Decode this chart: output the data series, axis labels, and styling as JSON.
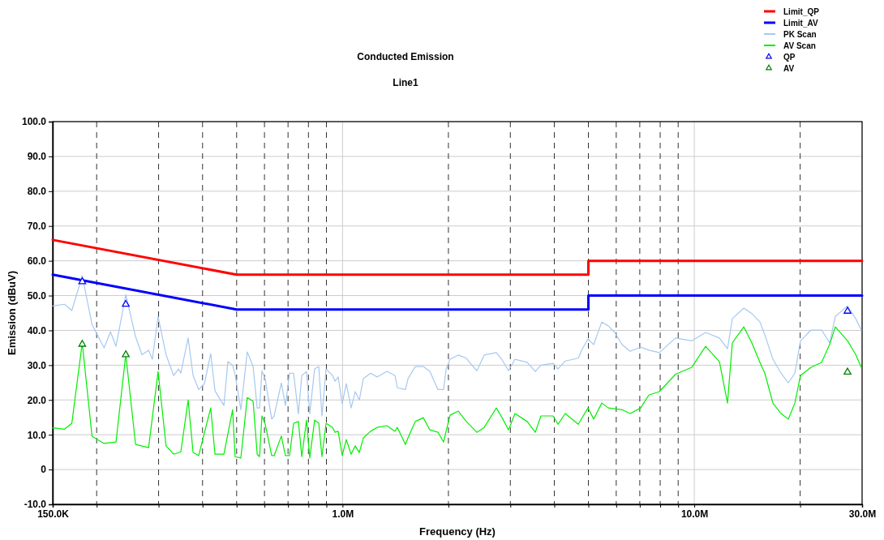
{
  "chart_data": {
    "type": "line",
    "title": "Conducted Emission",
    "subtitle": "Line1",
    "xlabel": "Frequency (Hz)",
    "ylabel": "Emission (dBuV)",
    "log": "x",
    "grid": true,
    "legend": "top right",
    "xlim": [
      150000,
      30000000
    ],
    "xticks": [
      {
        "value": 150000,
        "label": "150.0K"
      },
      {
        "value": 200000,
        "label": null
      },
      {
        "value": 300000,
        "label": null
      },
      {
        "value": 400000,
        "label": null
      },
      {
        "value": 500000,
        "label": null
      },
      {
        "value": 600000,
        "label": null
      },
      {
        "value": 700000,
        "label": null
      },
      {
        "value": 800000,
        "label": null
      },
      {
        "value": 900000,
        "label": null
      },
      {
        "value": 1000000,
        "label": "1.0M"
      },
      {
        "value": 2000000,
        "label": null
      },
      {
        "value": 3000000,
        "label": null
      },
      {
        "value": 4000000,
        "label": null
      },
      {
        "value": 5000000,
        "label": null
      },
      {
        "value": 6000000,
        "label": null
      },
      {
        "value": 7000000,
        "label": null
      },
      {
        "value": 8000000,
        "label": null
      },
      {
        "value": 9000000,
        "label": null
      },
      {
        "value": 10000000,
        "label": "10.0M"
      },
      {
        "value": 20000000,
        "label": null
      },
      {
        "value": 30000000,
        "label": "30.0M"
      }
    ],
    "ylim": [
      -10,
      100
    ],
    "yticks": [
      {
        "value": -10,
        "label": "-10.0"
      },
      {
        "value": 0,
        "label": "0"
      },
      {
        "value": 10,
        "label": "10.0"
      },
      {
        "value": 20,
        "label": "20.0"
      },
      {
        "value": 30,
        "label": "30.0"
      },
      {
        "value": 40,
        "label": "40.0"
      },
      {
        "value": 50,
        "label": "50.0"
      },
      {
        "value": 60,
        "label": "60.0"
      },
      {
        "value": 70,
        "label": "70.0"
      },
      {
        "value": 80,
        "label": "80.0"
      },
      {
        "value": 90,
        "label": "90.0"
      },
      {
        "value": 100,
        "label": "100.0"
      }
    ],
    "series": [
      {
        "name": "Limit_QP",
        "color": "#ff0000",
        "x": [
          150000,
          500000,
          5000000,
          5000000,
          30000000
        ],
        "values": [
          66,
          56,
          56,
          60,
          60
        ]
      },
      {
        "name": "Limit_AV",
        "color": "#0000ff",
        "x": [
          150000,
          500000,
          5000000,
          5000000,
          30000000
        ],
        "values": [
          56,
          46,
          46,
          50,
          50
        ]
      },
      {
        "name": "PK Scan",
        "color": "#a6c8f0",
        "x": [
          150000,
          162000,
          170000,
          182000,
          194000,
          210000,
          219000,
          227000,
          242000,
          258000,
          269000,
          281000,
          288000,
          299000,
          315000,
          331000,
          342000,
          347000,
          364000,
          376000,
          390000,
          405000,
          422000,
          434000,
          460000,
          472000,
          487000,
          495000,
          514000,
          536000,
          557000,
          572000,
          581000,
          590000,
          603000,
          629000,
          639000,
          670000,
          688000,
          707000,
          726000,
          749000,
          766000,
          790000,
          807000,
          833000,
          856000,
          874000,
          898000,
          937000,
          952000,
          972000,
          998000,
          1025000,
          1058000,
          1087000,
          1116000,
          1146000,
          1202000,
          1254000,
          1337000,
          1410000,
          1432000,
          1510000,
          1535000,
          1610000,
          1697000,
          1771000,
          1868000,
          1938000,
          1970000,
          2022000,
          2133000,
          2249000,
          2309000,
          2410000,
          2528000,
          2737000,
          2856000,
          2964000,
          3093000,
          3349000,
          3532000,
          3665000,
          3969000,
          4097000,
          4298000,
          4679000,
          4805000,
          4987000,
          5176000,
          5458000,
          5695000,
          5942000,
          6233000,
          6572000,
          7042000,
          7426000,
          7957000,
          8850000,
          9840000,
          10770000,
          11790000,
          12430000,
          12830000,
          13830000,
          14580000,
          15370000,
          15870000,
          16730000,
          17640000,
          18510000,
          19320000,
          20040000,
          21470000,
          23010000,
          24270000,
          25170000,
          27270000,
          28750000,
          29850000
        ],
        "values": [
          47,
          47.5,
          45.7,
          55.7,
          41.7,
          35,
          39.6,
          35.4,
          50.3,
          38.2,
          33,
          34.3,
          31.7,
          44,
          33,
          27,
          28.9,
          27.7,
          37.8,
          27,
          23,
          24.7,
          33.3,
          22.6,
          18.4,
          31,
          30,
          27.3,
          17.2,
          33.8,
          29.6,
          17.7,
          17.7,
          28.4,
          25.9,
          14.5,
          15.4,
          24.9,
          18.4,
          27.7,
          27.7,
          16,
          27,
          28.2,
          16,
          28.9,
          29.6,
          15.4,
          28.9,
          27,
          25.4,
          26.6,
          18.9,
          24.7,
          17.7,
          22.4,
          20,
          26.1,
          27.7,
          26.6,
          28.2,
          27,
          23.5,
          23,
          26.1,
          29.6,
          29.6,
          28.2,
          23,
          23,
          28.9,
          31.7,
          32.9,
          32,
          30.5,
          28.4,
          32.9,
          33.6,
          31.2,
          28.4,
          31.7,
          30.8,
          28.2,
          30,
          30.5,
          28.9,
          31.2,
          32,
          34.7,
          37.5,
          35.9,
          42.4,
          41.3,
          39.4,
          35.9,
          34,
          35.2,
          34.3,
          33.6,
          37.8,
          37,
          39.4,
          37.8,
          34.7,
          43.4,
          46.4,
          44.8,
          42.4,
          38.7,
          31.7,
          27.7,
          24.9,
          27.7,
          37,
          40.1,
          40.1,
          36.4,
          44,
          47,
          43.4,
          40.1
        ]
      },
      {
        "name": "AV Scan",
        "color": "#00ee00",
        "x": [
          150000,
          162000,
          170000,
          182000,
          194000,
          210000,
          227000,
          242000,
          258000,
          281000,
          299000,
          315000,
          331000,
          347000,
          364000,
          376000,
          390000,
          422000,
          434000,
          460000,
          487000,
          495000,
          514000,
          536000,
          557000,
          572000,
          581000,
          590000,
          603000,
          629000,
          639000,
          670000,
          688000,
          707000,
          726000,
          749000,
          766000,
          790000,
          807000,
          833000,
          856000,
          874000,
          898000,
          937000,
          952000,
          972000,
          998000,
          1025000,
          1058000,
          1087000,
          1116000,
          1146000,
          1202000,
          1254000,
          1337000,
          1410000,
          1432000,
          1510000,
          1535000,
          1610000,
          1697000,
          1771000,
          1868000,
          1938000,
          1970000,
          2022000,
          2133000,
          2249000,
          2410000,
          2528000,
          2737000,
          2856000,
          2964000,
          3093000,
          3349000,
          3532000,
          3665000,
          3969000,
          4097000,
          4298000,
          4679000,
          4987000,
          5176000,
          5458000,
          5695000,
          6233000,
          6572000,
          7042000,
          7426000,
          7957000,
          8850000,
          9840000,
          10770000,
          11790000,
          12430000,
          12830000,
          13830000,
          14580000,
          15370000,
          15870000,
          16730000,
          17640000,
          18510000,
          19320000,
          20040000,
          21470000,
          23010000,
          24270000,
          25170000,
          27270000,
          28750000,
          29850000
        ],
        "values": [
          12,
          11.6,
          13.3,
          36.4,
          9.6,
          7.5,
          7.9,
          33.1,
          7.2,
          6.3,
          28.2,
          6.8,
          4.4,
          5.1,
          20,
          4.9,
          4,
          17.7,
          4.4,
          4.4,
          17.2,
          3.7,
          3.3,
          20.7,
          19.6,
          4.4,
          3.7,
          15.4,
          13,
          4,
          4,
          9.6,
          4,
          4,
          13.3,
          13.8,
          3.7,
          14.2,
          3.3,
          14.2,
          13.3,
          3.7,
          13.3,
          12.1,
          10.7,
          11,
          4,
          8.6,
          4.4,
          6.8,
          4.9,
          9.1,
          11,
          12.1,
          12.6,
          11,
          12.1,
          7.2,
          9.1,
          13.8,
          14.9,
          11.4,
          10.7,
          7.9,
          11,
          15.6,
          16.8,
          13.8,
          10.7,
          12.1,
          17.7,
          14.5,
          11.4,
          16.1,
          13.8,
          10.7,
          15.4,
          15.4,
          13,
          16.1,
          13,
          17.7,
          14.5,
          19.1,
          17.7,
          17.2,
          16.1,
          17.7,
          21.4,
          22.4,
          27.4,
          29.4,
          35.4,
          31,
          19.1,
          36.4,
          41,
          36.4,
          30.8,
          27.7,
          19.1,
          16.1,
          14.5,
          19.1,
          27,
          29.4,
          30.8,
          36,
          41,
          37,
          33.1,
          29.4
        ]
      },
      {
        "name": "QP",
        "type": "scatter",
        "marker": "triangle",
        "color": "#0000ff",
        "x": [
          182000,
          242000,
          27270000
        ],
        "values": [
          54,
          47.5,
          45.5
        ]
      },
      {
        "name": "AV",
        "type": "scatter",
        "marker": "triangle",
        "color": "#008000",
        "x": [
          182000,
          242000,
          27270000
        ],
        "values": [
          36,
          33,
          28
        ]
      }
    ]
  }
}
